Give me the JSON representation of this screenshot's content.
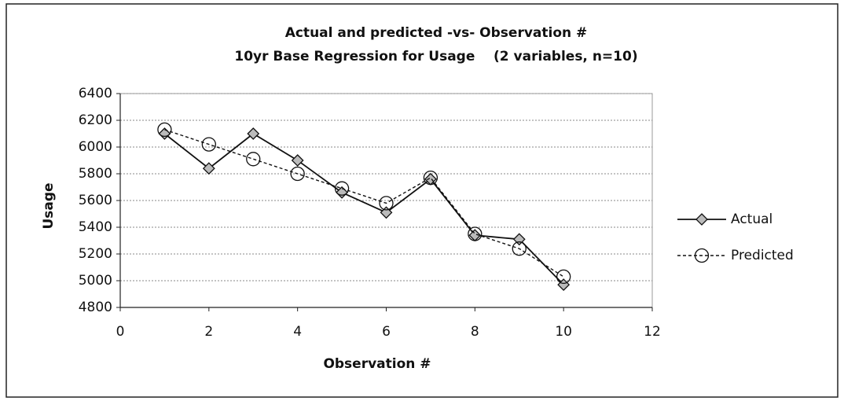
{
  "chart_data": {
    "type": "line",
    "title": "Actual and predicted -vs- Observation #",
    "subtitle": "10yr Base Regression for Usage    (2 variables, n=10)",
    "x_label": "Observation #",
    "y_label": "Usage",
    "x": [
      1,
      2,
      3,
      4,
      5,
      6,
      7,
      8,
      9,
      10
    ],
    "series": [
      {
        "name": "Actual",
        "color": "#111111",
        "marker": "diamond",
        "dashed": false,
        "values": [
          6100,
          5840,
          6100,
          5900,
          5660,
          5510,
          5760,
          5340,
          5310,
          4970
        ]
      },
      {
        "name": "Predicted",
        "color": "#111111",
        "marker": "circle",
        "dashed": true,
        "values": [
          6130,
          6020,
          5910,
          5800,
          5690,
          5580,
          5770,
          5350,
          5240,
          5030
        ]
      }
    ],
    "xlim": [
      0,
      12
    ],
    "xticks": [
      0,
      2,
      4,
      6,
      8,
      10,
      12
    ],
    "ylim": [
      4800,
      6400
    ],
    "yticks": [
      4800,
      5000,
      5200,
      5400,
      5600,
      5800,
      6000,
      6200,
      6400
    ],
    "grid": true,
    "legend": "right"
  }
}
